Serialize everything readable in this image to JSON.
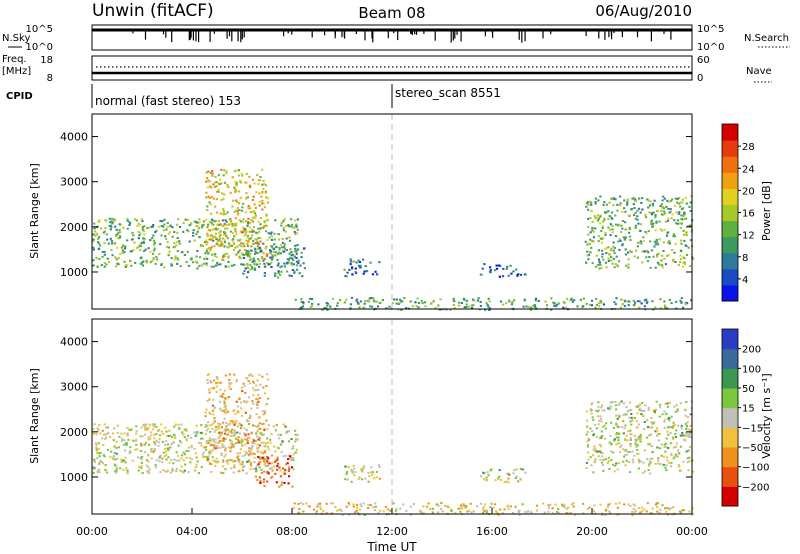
{
  "header": {
    "station": "Unwin (fitACF)",
    "beam": "Beam 08",
    "date": "06/Aug/2010"
  },
  "top_panel": {
    "left_label": "N.Sky",
    "right_label": "N.Search",
    "left_ticks": [
      "10^5",
      "10^0"
    ],
    "right_ticks": [
      "10^5",
      "10^0"
    ]
  },
  "freq_panel": {
    "left_label_1": "Freq.",
    "left_label_2": "[MHz]",
    "left_ticks": [
      "18",
      "8"
    ],
    "right_ticks": [
      "60",
      "0"
    ],
    "right_label": "Nave"
  },
  "cpid_panel": {
    "label": "CPID",
    "modes": [
      {
        "text": "normal (fast stereo) 153",
        "start_hour": 0
      },
      {
        "text": "stereo_scan 8551",
        "start_hour": 12
      }
    ]
  },
  "colors": {
    "power_palette": [
      "#0a14e6",
      "#1a4ac4",
      "#2d7a9a",
      "#3a9a60",
      "#60b040",
      "#a8c828",
      "#e0d020",
      "#f0a010",
      "#f07010",
      "#e83a10",
      "#d40000"
    ],
    "velocity_palette": [
      "#2a3cc4",
      "#3a6a9a",
      "#3a9850",
      "#7cc83a",
      "#c0c0b8",
      "#f0c040",
      "#f09020",
      "#e85010",
      "#d40000"
    ]
  },
  "chart_data": [
    {
      "type": "heatmap",
      "name": "power",
      "ylabel": "Slant Range [km]",
      "ylim": [
        180,
        4500
      ],
      "xlim": [
        0,
        24
      ],
      "yticks": [
        "1000",
        "2000",
        "3000",
        "4000"
      ],
      "colorbar": {
        "label": "Power [dB]",
        "ticks": [
          "28",
          "24",
          "20",
          "16",
          "12",
          "8",
          "4"
        ],
        "range": [
          0,
          30
        ]
      },
      "regions": [
        {
          "x0": 0,
          "x1": 8.2,
          "y0": 1100,
          "y1": 2200,
          "level": 12
        },
        {
          "x0": 4.5,
          "x1": 7.0,
          "y0": 1300,
          "y1": 3300,
          "level": 18
        },
        {
          "x0": 6.0,
          "x1": 8.5,
          "y0": 900,
          "y1": 1600,
          "level": 9
        },
        {
          "x0": 10.0,
          "x1": 11.5,
          "y0": 900,
          "y1": 1300,
          "level": 6
        },
        {
          "x0": 15.5,
          "x1": 17.3,
          "y0": 900,
          "y1": 1200,
          "level": 6
        },
        {
          "x0": 19.7,
          "x1": 24,
          "y0": 1100,
          "y1": 2700,
          "level": 12
        },
        {
          "x0": 8.0,
          "x1": 24,
          "y0": 180,
          "y1": 450,
          "level": 10
        }
      ]
    },
    {
      "type": "heatmap",
      "name": "velocity",
      "ylabel": "Slant Range [km]",
      "xlabel": "Time UT",
      "ylim": [
        180,
        4500
      ],
      "xlim": [
        0,
        24
      ],
      "yticks": [
        "1000",
        "2000",
        "3000",
        "4000"
      ],
      "xticks": [
        "00:00",
        "04:00",
        "08:00",
        "12:00",
        "16:00",
        "20:00",
        "00:00"
      ],
      "colorbar": {
        "label": "Velocity [m s⁻¹]",
        "ticks": [
          "200",
          "100",
          "50",
          "15",
          "−15",
          "−50",
          "−100",
          "−200"
        ],
        "range": [
          -250,
          250
        ]
      },
      "regions": [
        {
          "x0": 0,
          "x1": 8.2,
          "y0": 1100,
          "y1": 2200,
          "level": 0
        },
        {
          "x0": 4.5,
          "x1": 7.0,
          "y0": 1300,
          "y1": 3300,
          "level": -60
        },
        {
          "x0": 6.5,
          "x1": 8.0,
          "y0": 800,
          "y1": 1500,
          "level": -180
        },
        {
          "x0": 10.0,
          "x1": 11.5,
          "y0": 900,
          "y1": 1300,
          "level": 0
        },
        {
          "x0": 15.5,
          "x1": 17.3,
          "y0": 900,
          "y1": 1200,
          "level": 0
        },
        {
          "x0": 19.7,
          "x1": 24,
          "y0": 1100,
          "y1": 2700,
          "level": 5
        },
        {
          "x0": 8.0,
          "x1": 24,
          "y0": 180,
          "y1": 450,
          "level": -40
        }
      ]
    }
  ]
}
